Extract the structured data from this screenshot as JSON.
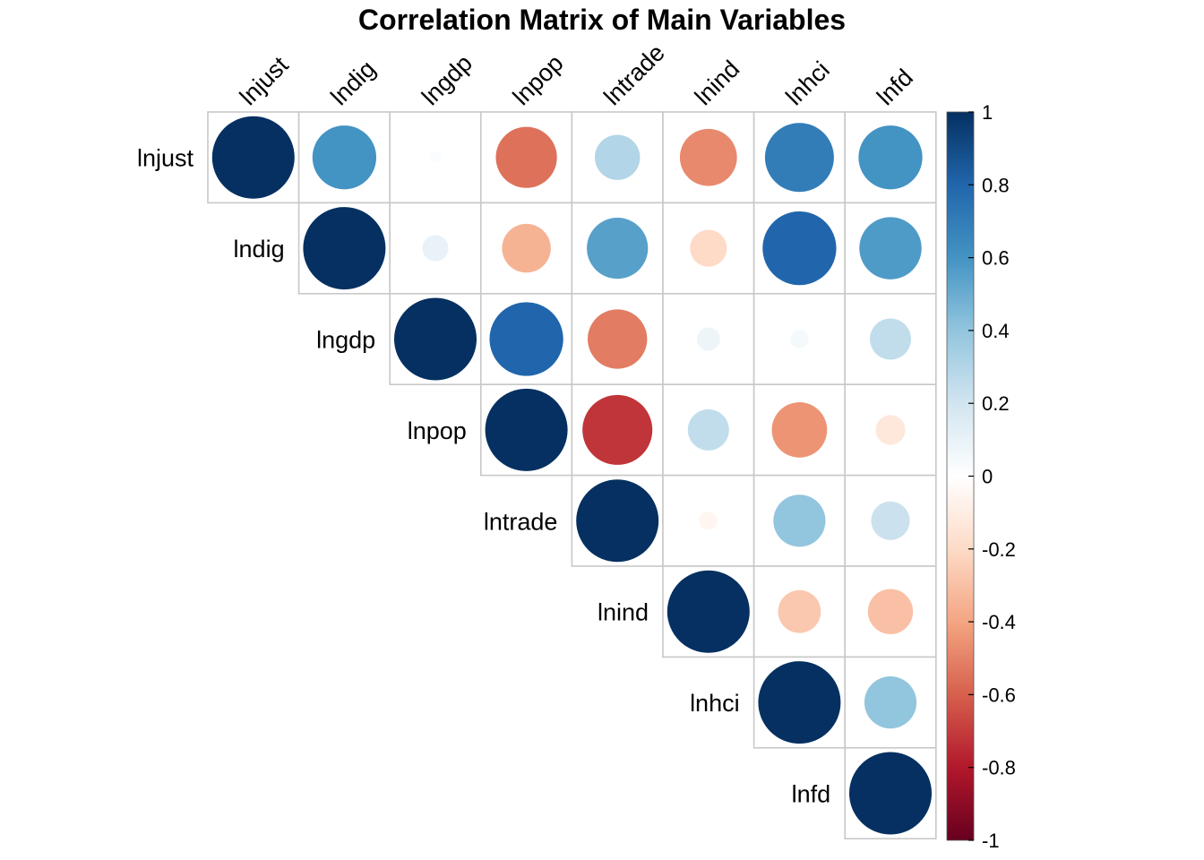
{
  "chart_data": {
    "type": "heatmap",
    "title": "Correlation Matrix of Main Variables",
    "variables": [
      "lnjust",
      "lndig",
      "lngdp",
      "lnpop",
      "lntrade",
      "lnind",
      "lnhci",
      "lnfd"
    ],
    "matrix": [
      [
        1.0,
        0.6,
        0.02,
        -0.55,
        0.3,
        -0.48,
        0.7,
        0.6
      ],
      [
        0.6,
        1.0,
        0.1,
        -0.35,
        0.55,
        -0.2,
        0.8,
        0.57
      ],
      [
        0.02,
        0.1,
        1.0,
        0.8,
        -0.52,
        0.08,
        0.05,
        0.25
      ],
      [
        -0.55,
        -0.35,
        0.8,
        1.0,
        -0.72,
        0.25,
        -0.45,
        -0.13
      ],
      [
        0.3,
        0.55,
        -0.52,
        -0.72,
        1.0,
        -0.05,
        0.4,
        0.22
      ],
      [
        -0.48,
        -0.2,
        0.08,
        0.25,
        -0.05,
        1.0,
        -0.27,
        -0.3
      ],
      [
        0.7,
        0.8,
        0.05,
        -0.45,
        0.4,
        -0.27,
        1.0,
        0.4
      ],
      [
        0.6,
        0.57,
        0.25,
        -0.13,
        0.22,
        -0.3,
        0.4,
        1.0
      ]
    ],
    "layout": "upper-triangle",
    "shape": "circle",
    "colorbar": {
      "range": [
        -1,
        1
      ],
      "ticks": [
        "1",
        "0.8",
        "0.6",
        "0.4",
        "0.2",
        "0",
        "-0.2",
        "-0.4",
        "-0.6",
        "-0.8",
        "-1"
      ],
      "colors": [
        "#67001F",
        "#B2182B",
        "#D6604D",
        "#F4A582",
        "#FDDBC7",
        "#FFFFFF",
        "#D1E5F0",
        "#92C5DE",
        "#4393C3",
        "#2166AC",
        "#053061"
      ]
    }
  }
}
